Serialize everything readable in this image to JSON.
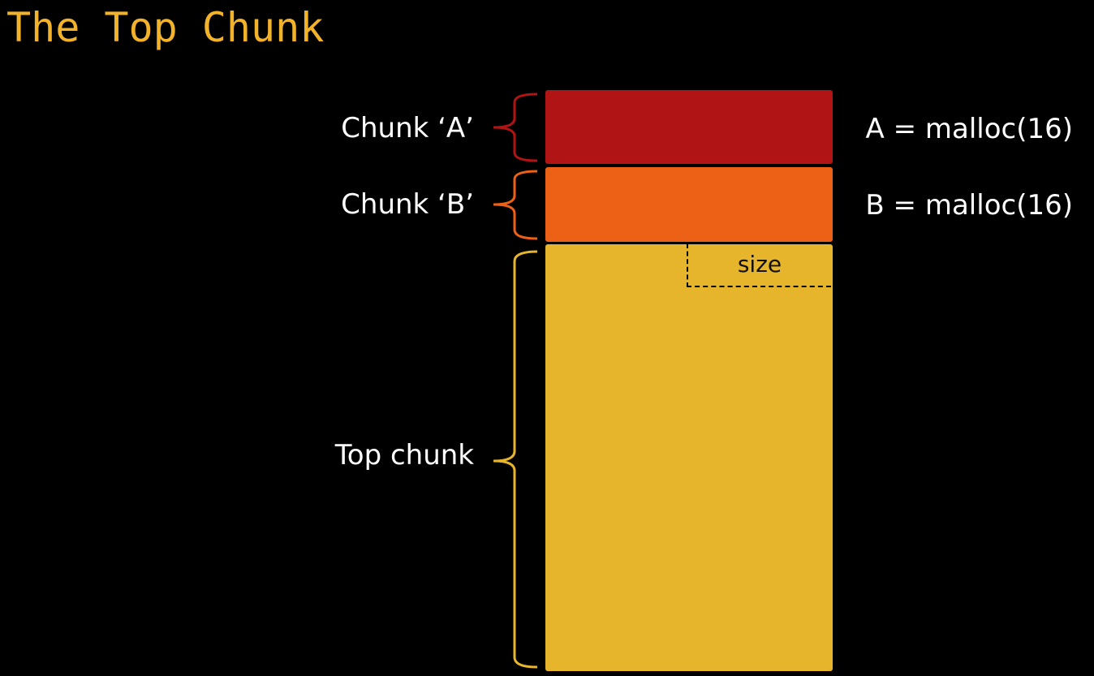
{
  "title": "The Top Chunk",
  "colors": {
    "background": "#000000",
    "title": "#f2b32a",
    "text": "#ffffff",
    "chunk_a": "#b01414",
    "chunk_b": "#ec6115",
    "top_chunk": "#e6b52c"
  },
  "chunks": {
    "a": {
      "label": "Chunk ‘A’",
      "call": "A = malloc(16)"
    },
    "b": {
      "label": "Chunk ‘B’",
      "call": "B = malloc(16)"
    },
    "top": {
      "label": "Top chunk",
      "field": "size"
    }
  }
}
